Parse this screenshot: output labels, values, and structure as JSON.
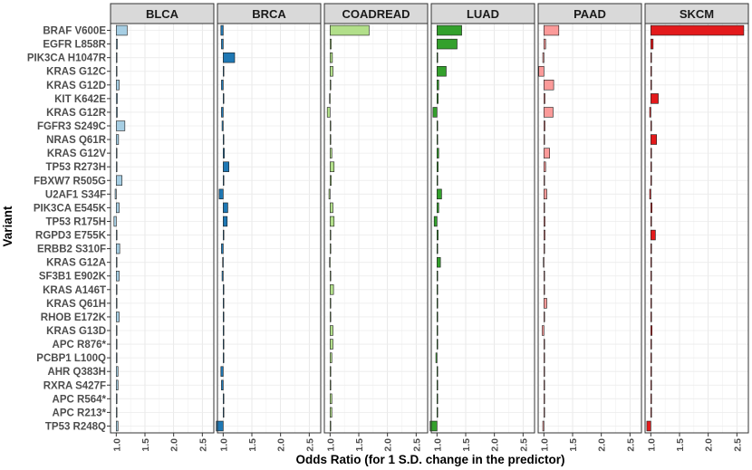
{
  "chart_data": {
    "type": "bar",
    "orientation": "horizontal",
    "facets": [
      "BLCA",
      "BRCA",
      "COADREAD",
      "LUAD",
      "PAAD",
      "SKCM"
    ],
    "xlabel": "Odds Ratio (for 1 S.D. change in the predictor)",
    "ylabel": "Variant",
    "xticks": [
      "1.0",
      "1.5",
      "2.0",
      "2.5"
    ],
    "xtick_values": [
      1.0,
      1.5,
      2.0,
      2.5
    ],
    "xlim": [
      0.9,
      2.7
    ],
    "baseline": 1.0,
    "grid": true,
    "categories": [
      "BRAF V600E",
      "EGFR L858R",
      "PIK3CA H1047R",
      "KRAS G12C",
      "KRAS G12D",
      "KIT K642E",
      "KRAS G12R",
      "FGFR3 S249C",
      "NRAS Q61R",
      "KRAS G12V",
      "TP53 R273H",
      "FBXW7 R505G",
      "U2AF1 S34F",
      "PIK3CA E545K",
      "TP53 R175H",
      "RGPD3 E755K",
      "ERBB2 S310F",
      "KRAS G12A",
      "SF3B1 E902K",
      "KRAS A146T",
      "KRAS Q61H",
      "RHOB E172K",
      "KRAS G13D",
      "APC R876*",
      "PCBP1 L100Q",
      "AHR Q383H",
      "RXRA S427F",
      "APC R564*",
      "APC R213*",
      "TP53 R248Q"
    ],
    "series": [
      {
        "name": "BLCA",
        "color": "#a6cee3",
        "values": [
          1.19,
          1.02,
          1.0,
          1.01,
          1.05,
          1.02,
          1.02,
          1.15,
          1.04,
          1.0,
          1.0,
          1.1,
          0.98,
          1.05,
          0.96,
          1.0,
          1.06,
          1.0,
          1.05,
          1.0,
          1.0,
          1.05,
          1.0,
          1.0,
          1.0,
          1.03,
          1.03,
          1.0,
          1.0,
          1.03
        ]
      },
      {
        "name": "BRCA",
        "color": "#1f78b4",
        "values": [
          0.96,
          0.97,
          1.2,
          1.0,
          0.97,
          1.0,
          0.97,
          0.98,
          1.0,
          1.02,
          1.1,
          1.0,
          0.93,
          1.08,
          1.07,
          1.0,
          0.97,
          0.99,
          0.98,
          1.0,
          1.0,
          1.0,
          1.0,
          1.0,
          1.0,
          0.96,
          0.97,
          1.0,
          1.0,
          0.88
        ]
      },
      {
        "name": "COADREAD",
        "color": "#b2df8a",
        "values": [
          1.68,
          1.02,
          1.04,
          1.05,
          1.0,
          0.99,
          0.95,
          1.0,
          1.0,
          1.03,
          1.07,
          1.02,
          0.98,
          1.05,
          1.07,
          1.01,
          1.0,
          0.99,
          1.0,
          1.06,
          1.0,
          1.0,
          1.05,
          1.05,
          1.03,
          1.0,
          1.0,
          1.03,
          1.03,
          1.0
        ]
      },
      {
        "name": "LUAD",
        "color": "#33a02c",
        "values": [
          1.43,
          1.35,
          1.0,
          1.16,
          1.03,
          1.02,
          0.93,
          1.0,
          1.0,
          1.03,
          1.02,
          1.0,
          1.08,
          1.03,
          0.95,
          1.02,
          1.0,
          1.06,
          1.0,
          1.0,
          1.0,
          1.0,
          1.0,
          1.0,
          0.98,
          1.0,
          1.0,
          1.0,
          1.0,
          0.88
        ]
      },
      {
        "name": "PAAD",
        "color": "#fb9a99",
        "values": [
          1.26,
          1.03,
          0.98,
          0.91,
          1.17,
          1.02,
          1.16,
          1.02,
          1.0,
          1.1,
          1.03,
          1.01,
          1.05,
          1.01,
          1.02,
          1.02,
          1.0,
          0.99,
          1.0,
          1.0,
          1.05,
          1.0,
          0.97,
          1.0,
          1.0,
          1.0,
          1.01,
          1.0,
          1.0,
          0.98
        ]
      },
      {
        "name": "SKCM",
        "color": "#e31a1c",
        "values": [
          2.62,
          1.04,
          1.0,
          1.0,
          1.0,
          1.13,
          0.98,
          1.01,
          1.1,
          1.0,
          1.01,
          1.0,
          0.98,
          1.02,
          1.0,
          1.08,
          1.0,
          1.0,
          1.0,
          1.0,
          1.0,
          1.0,
          1.02,
          1.0,
          1.0,
          1.0,
          1.0,
          1.0,
          1.0,
          0.93
        ]
      }
    ]
  }
}
